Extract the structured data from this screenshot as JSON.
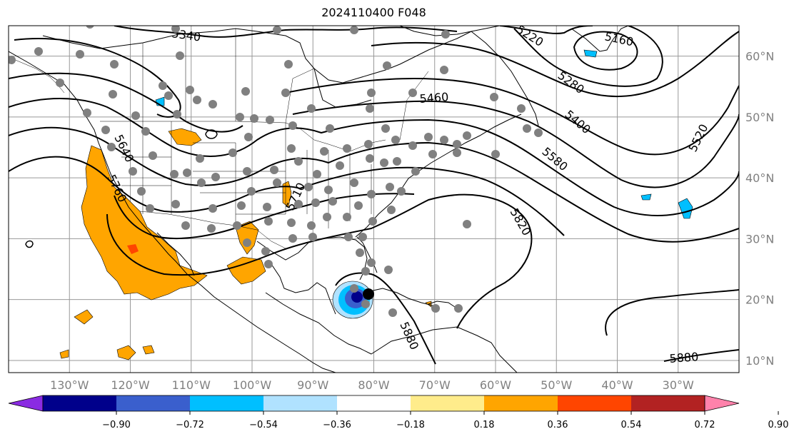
{
  "title": "2024110400 F048",
  "map": {
    "projection": "plate-carree",
    "lon_range": [
      -140,
      -20
    ],
    "lat_range": [
      8,
      65
    ],
    "gridline_color": "#999999",
    "lon_ticks": [
      {
        "value": -130,
        "label": "130°W"
      },
      {
        "value": -120,
        "label": "120°W"
      },
      {
        "value": -110,
        "label": "110°W"
      },
      {
        "value": -100,
        "label": "100°W"
      },
      {
        "value": -90,
        "label": "90°W"
      },
      {
        "value": -80,
        "label": "80°W"
      },
      {
        "value": -70,
        "label": "70°W"
      },
      {
        "value": -60,
        "label": "60°W"
      },
      {
        "value": -50,
        "label": "50°W"
      },
      {
        "value": -40,
        "label": "40°W"
      },
      {
        "value": -30,
        "label": "30°W"
      }
    ],
    "lat_ticks": [
      {
        "value": 60,
        "label": "60°N"
      },
      {
        "value": 50,
        "label": "50°N"
      },
      {
        "value": 40,
        "label": "40°N"
      },
      {
        "value": 30,
        "label": "30°N"
      },
      {
        "value": 20,
        "label": "20°N"
      },
      {
        "value": 10,
        "label": "10°N"
      }
    ],
    "contour_labels": [
      "5340",
      "5220",
      "5160",
      "5280",
      "5460",
      "5400",
      "5580",
      "5520",
      "5640",
      "5760",
      "5710",
      "5820",
      "5880",
      "5880"
    ],
    "station_marker_color": "#808080"
  },
  "colorbar": {
    "colors": [
      "#8a2be2",
      "#00008b",
      "#3a5fcd",
      "#00bfff",
      "#b0e2ff",
      "#ffffff",
      "#ffec8b",
      "#ffa500",
      "#ff4500",
      "#b22222",
      "#ff82ab"
    ],
    "ticks": [
      "−0.90",
      "−0.72",
      "−0.54",
      "−0.36",
      "−0.18",
      "0.18",
      "0.36",
      "0.54",
      "0.72",
      "0.90"
    ]
  }
}
